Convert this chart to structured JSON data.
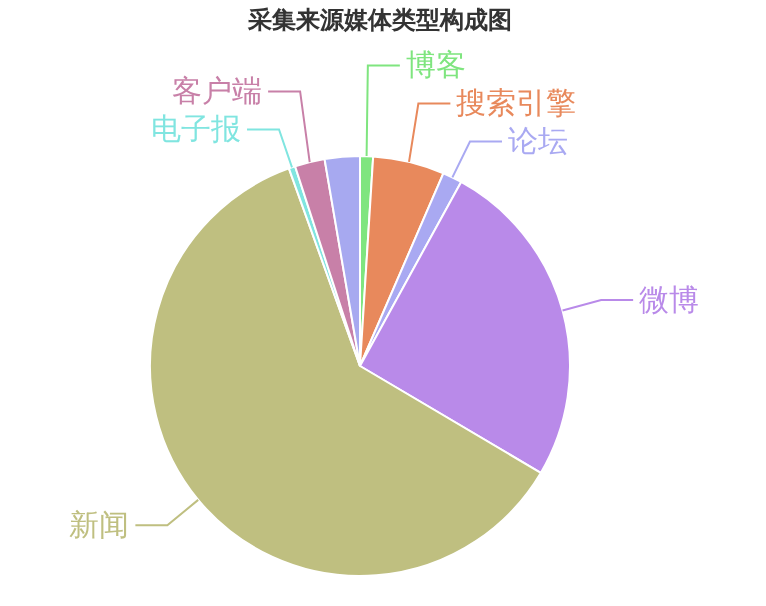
{
  "chart_data": {
    "type": "pie",
    "title": "采集来源媒体类型构成图",
    "categories": [
      "博客",
      "搜索引擎",
      "论坛",
      "微博",
      "新闻",
      "电子报",
      "客户端",
      null
    ],
    "values": [
      1,
      5.5,
      1.5,
      25.5,
      61,
      0.5,
      2.3,
      2.7
    ],
    "colors": [
      "#7fe57f",
      "#e8895c",
      "#a9a9f2",
      "#b98ae9",
      "#bfbf80",
      "#80e5e0",
      "#c880a8",
      "#a7a9f0"
    ]
  }
}
